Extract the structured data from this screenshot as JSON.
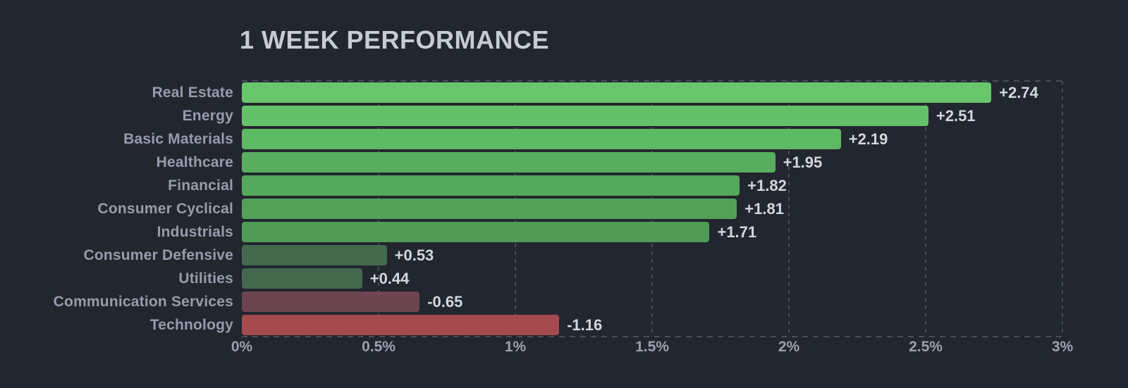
{
  "page": {
    "background": "#22262f"
  },
  "chart_data": {
    "type": "bar",
    "orientation": "horizontal",
    "title": "1 WEEK PERFORMANCE",
    "categories": [
      "Real Estate",
      "Energy",
      "Basic Materials",
      "Healthcare",
      "Financial",
      "Consumer Cyclical",
      "Industrials",
      "Consumer Defensive",
      "Utilities",
      "Communication Services",
      "Technology"
    ],
    "values": [
      2.74,
      2.51,
      2.19,
      1.95,
      1.82,
      1.81,
      1.71,
      0.53,
      0.44,
      -0.65,
      -1.16
    ],
    "value_labels": [
      "+2.74",
      "+2.51",
      "+2.19",
      "+1.95",
      "+1.82",
      "+1.81",
      "+1.71",
      "+0.53",
      "+0.44",
      "-0.65",
      "-1.16"
    ],
    "bar_colors": [
      "#68c66c",
      "#65c169",
      "#5eb963",
      "#58ae5e",
      "#55a75b",
      "#53a159",
      "#509c57",
      "#45694e",
      "#44684d",
      "#6d4550",
      "#a54a4e"
    ],
    "xlabel": "",
    "ylabel": "",
    "xlim": [
      0,
      3
    ],
    "x_ticks": [
      "0%",
      "0.5%",
      "1%",
      "1.5%",
      "2%",
      "2.5%",
      "3%"
    ],
    "x_tick_values": [
      0,
      0.5,
      1,
      1.5,
      2,
      2.5,
      3
    ],
    "grid": "vertical dashed gridlines at each 0.5% tick; dashed top and bottom plot borders",
    "legend": "none",
    "colors": {
      "background": "#22262f",
      "title": "#c6cbd5",
      "category_label": "#959dad",
      "value_label": "#d2d6de",
      "axis_label": "#9aa1b1",
      "gridline": "#474c59",
      "positive_bright": "#65c169",
      "positive_muted": "#45694e",
      "negative_muted": "#6d4550",
      "negative_bright": "#a54a4e"
    }
  }
}
